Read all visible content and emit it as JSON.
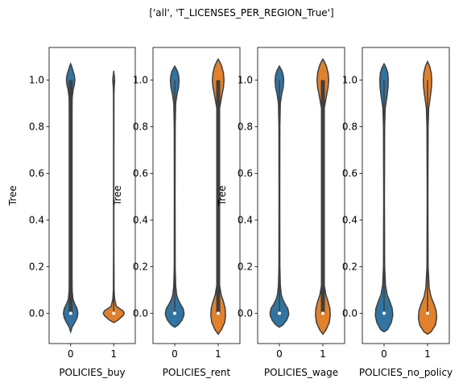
{
  "figure": {
    "suptitle": "['all', 'T_LICENSES_PER_REGION_True']"
  },
  "colors": {
    "group0": "#3274a1",
    "group1": "#e1812c",
    "inner": "#3f3f3f",
    "axis": "#000000",
    "background": "#ffffff"
  },
  "chart_data": [
    {
      "type": "violin",
      "xlabel": "POLICIES_buy",
      "ylabel": "Tree",
      "categories": [
        "0",
        "1"
      ],
      "ylim": [
        -0.13,
        1.14
      ],
      "yticks": [
        0.0,
        0.2,
        0.4,
        0.6,
        0.8,
        1.0
      ],
      "yticklabels": [
        "0.0",
        "0.2",
        "0.4",
        "0.6",
        "0.8",
        "1.0"
      ],
      "grid": false,
      "violins": [
        {
          "category": "0",
          "color_key": "group0",
          "extent": [
            -0.08,
            1.07
          ],
          "lower_mode": 0.0,
          "upper_mode": 1.0,
          "median": 0.0,
          "q1": 0.0,
          "q3": 1.0,
          "whisker_low": 0.0,
          "whisker_high": 1.0,
          "density_profile": [
            [
              -0.08,
              0.0
            ],
            [
              -0.06,
              0.12
            ],
            [
              -0.04,
              0.35
            ],
            [
              -0.02,
              0.55
            ],
            [
              0.0,
              0.62
            ],
            [
              0.02,
              0.55
            ],
            [
              0.04,
              0.35
            ],
            [
              0.06,
              0.2
            ],
            [
              0.1,
              0.12
            ],
            [
              0.2,
              0.09
            ],
            [
              0.5,
              0.07
            ],
            [
              0.8,
              0.08
            ],
            [
              0.92,
              0.12
            ],
            [
              0.96,
              0.22
            ],
            [
              0.98,
              0.32
            ],
            [
              1.0,
              0.36
            ],
            [
              1.02,
              0.32
            ],
            [
              1.04,
              0.2
            ],
            [
              1.06,
              0.08
            ],
            [
              1.07,
              0.0
            ]
          ]
        },
        {
          "category": "1",
          "color_key": "group1",
          "extent": [
            -0.04,
            1.04
          ],
          "lower_mode": 0.0,
          "upper_mode": 1.0,
          "median": 0.0,
          "q1": 0.0,
          "q3": 0.0,
          "whisker_low": 0.0,
          "whisker_high": 1.0,
          "density_profile": [
            [
              -0.04,
              0.0
            ],
            [
              -0.03,
              0.35
            ],
            [
              -0.01,
              0.8
            ],
            [
              0.0,
              0.9
            ],
            [
              0.01,
              0.8
            ],
            [
              0.02,
              0.5
            ],
            [
              0.03,
              0.22
            ],
            [
              0.06,
              0.08
            ],
            [
              0.1,
              0.03
            ],
            [
              0.3,
              0.015
            ],
            [
              0.7,
              0.015
            ],
            [
              0.94,
              0.02
            ],
            [
              0.97,
              0.04
            ],
            [
              0.99,
              0.07
            ],
            [
              1.0,
              0.08
            ],
            [
              1.01,
              0.07
            ],
            [
              1.02,
              0.04
            ],
            [
              1.03,
              0.015
            ],
            [
              1.04,
              0.0
            ]
          ]
        }
      ]
    },
    {
      "type": "violin",
      "xlabel": "POLICIES_rent",
      "ylabel": "Tree",
      "categories": [
        "0",
        "1"
      ],
      "ylim": [
        -0.13,
        1.14
      ],
      "yticks": [
        0.0,
        0.2,
        0.4,
        0.6,
        0.8,
        1.0
      ],
      "yticklabels": [
        "0.0",
        "0.2",
        "0.4",
        "0.6",
        "0.8",
        "1.0"
      ],
      "grid": false,
      "violins": [
        {
          "category": "0",
          "color_key": "group0",
          "extent": [
            -0.06,
            1.06
          ],
          "lower_mode": 0.0,
          "upper_mode": 1.0,
          "median": 0.0,
          "q1": 0.0,
          "q3": 0.0,
          "whisker_low": 0.0,
          "whisker_high": 1.0,
          "density_profile": [
            [
              -0.06,
              0.0
            ],
            [
              -0.05,
              0.3
            ],
            [
              -0.03,
              0.62
            ],
            [
              -0.01,
              0.78
            ],
            [
              0.0,
              0.8
            ],
            [
              0.02,
              0.72
            ],
            [
              0.04,
              0.48
            ],
            [
              0.06,
              0.28
            ],
            [
              0.08,
              0.16
            ],
            [
              0.12,
              0.08
            ],
            [
              0.2,
              0.04
            ],
            [
              0.5,
              0.03
            ],
            [
              0.8,
              0.04
            ],
            [
              0.9,
              0.08
            ],
            [
              0.94,
              0.2
            ],
            [
              0.97,
              0.33
            ],
            [
              1.0,
              0.37
            ],
            [
              1.02,
              0.33
            ],
            [
              1.04,
              0.22
            ],
            [
              1.06,
              0.0
            ]
          ]
        },
        {
          "category": "1",
          "color_key": "group1",
          "extent": [
            -0.09,
            1.09
          ],
          "lower_mode": 0.0,
          "upper_mode": 1.0,
          "median": 0.0,
          "q1": 0.0,
          "q3": 1.0,
          "whisker_low": 0.0,
          "whisker_high": 1.0,
          "density_profile": [
            [
              -0.09,
              0.0
            ],
            [
              -0.07,
              0.28
            ],
            [
              -0.04,
              0.55
            ],
            [
              -0.01,
              0.63
            ],
            [
              0.02,
              0.6
            ],
            [
              0.05,
              0.45
            ],
            [
              0.08,
              0.25
            ],
            [
              0.12,
              0.12
            ],
            [
              0.2,
              0.06
            ],
            [
              0.5,
              0.05
            ],
            [
              0.8,
              0.06
            ],
            [
              0.88,
              0.12
            ],
            [
              0.93,
              0.3
            ],
            [
              0.97,
              0.45
            ],
            [
              1.0,
              0.5
            ],
            [
              1.03,
              0.45
            ],
            [
              1.06,
              0.3
            ],
            [
              1.08,
              0.12
            ],
            [
              1.09,
              0.0
            ]
          ]
        }
      ]
    },
    {
      "type": "violin",
      "xlabel": "POLICIES_wage",
      "ylabel": "Tree",
      "categories": [
        "0",
        "1"
      ],
      "ylim": [
        -0.13,
        1.14
      ],
      "yticks": [
        0.0,
        0.2,
        0.4,
        0.6,
        0.8,
        1.0
      ],
      "yticklabels": [
        "0.0",
        "0.2",
        "0.4",
        "0.6",
        "0.8",
        "1.0"
      ],
      "grid": false,
      "violins": [
        {
          "category": "0",
          "color_key": "group0",
          "extent": [
            -0.06,
            1.06
          ],
          "lower_mode": 0.0,
          "upper_mode": 1.0,
          "median": 0.0,
          "q1": 0.0,
          "q3": 0.0,
          "whisker_low": 0.0,
          "whisker_high": 1.0,
          "density_profile": [
            [
              -0.06,
              0.0
            ],
            [
              -0.05,
              0.3
            ],
            [
              -0.03,
              0.62
            ],
            [
              -0.01,
              0.78
            ],
            [
              0.0,
              0.8
            ],
            [
              0.02,
              0.72
            ],
            [
              0.04,
              0.48
            ],
            [
              0.06,
              0.28
            ],
            [
              0.08,
              0.16
            ],
            [
              0.12,
              0.08
            ],
            [
              0.2,
              0.04
            ],
            [
              0.5,
              0.03
            ],
            [
              0.8,
              0.04
            ],
            [
              0.9,
              0.08
            ],
            [
              0.94,
              0.2
            ],
            [
              0.97,
              0.33
            ],
            [
              1.0,
              0.37
            ],
            [
              1.02,
              0.33
            ],
            [
              1.04,
              0.22
            ],
            [
              1.06,
              0.0
            ]
          ]
        },
        {
          "category": "1",
          "color_key": "group1",
          "extent": [
            -0.09,
            1.09
          ],
          "lower_mode": 0.0,
          "upper_mode": 1.0,
          "median": 0.0,
          "q1": 0.0,
          "q3": 1.0,
          "whisker_low": 0.0,
          "whisker_high": 1.0,
          "density_profile": [
            [
              -0.09,
              0.0
            ],
            [
              -0.07,
              0.28
            ],
            [
              -0.04,
              0.55
            ],
            [
              -0.01,
              0.63
            ],
            [
              0.02,
              0.6
            ],
            [
              0.05,
              0.45
            ],
            [
              0.08,
              0.25
            ],
            [
              0.12,
              0.12
            ],
            [
              0.2,
              0.06
            ],
            [
              0.5,
              0.05
            ],
            [
              0.8,
              0.06
            ],
            [
              0.88,
              0.12
            ],
            [
              0.93,
              0.3
            ],
            [
              0.97,
              0.45
            ],
            [
              1.0,
              0.5
            ],
            [
              1.03,
              0.45
            ],
            [
              1.06,
              0.3
            ],
            [
              1.08,
              0.12
            ],
            [
              1.09,
              0.0
            ]
          ]
        }
      ]
    },
    {
      "type": "violin",
      "xlabel": "POLICIES_no_policy",
      "ylabel": "",
      "categories": [
        "0",
        "1"
      ],
      "ylim": [
        -0.13,
        1.14
      ],
      "yticks": [
        0.0,
        0.2,
        0.4,
        0.6,
        0.8,
        1.0
      ],
      "yticklabels": [
        "0.0",
        "0.2",
        "0.4",
        "0.6",
        "0.8",
        "1.0"
      ],
      "grid": false,
      "violins": [
        {
          "category": "0",
          "color_key": "group0",
          "extent": [
            -0.08,
            1.07
          ],
          "lower_mode": 0.0,
          "upper_mode": 1.0,
          "median": 0.0,
          "q1": 0.0,
          "q3": 0.0,
          "whisker_low": 0.0,
          "whisker_high": 1.0,
          "density_profile": [
            [
              -0.08,
              0.0
            ],
            [
              -0.07,
              0.3
            ],
            [
              -0.04,
              0.62
            ],
            [
              -0.01,
              0.75
            ],
            [
              0.02,
              0.7
            ],
            [
              0.05,
              0.5
            ],
            [
              0.08,
              0.26
            ],
            [
              0.12,
              0.12
            ],
            [
              0.2,
              0.05
            ],
            [
              0.5,
              0.03
            ],
            [
              0.8,
              0.05
            ],
            [
              0.88,
              0.1
            ],
            [
              0.93,
              0.25
            ],
            [
              0.97,
              0.34
            ],
            [
              1.0,
              0.36
            ],
            [
              1.03,
              0.32
            ],
            [
              1.05,
              0.2
            ],
            [
              1.07,
              0.0
            ]
          ]
        },
        {
          "category": "1",
          "color_key": "group1",
          "extent": [
            -0.09,
            1.08
          ],
          "lower_mode": 0.0,
          "upper_mode": 1.0,
          "median": 0.0,
          "q1": 0.0,
          "q3": 0.0,
          "whisker_low": 0.0,
          "whisker_high": 1.0,
          "density_profile": [
            [
              -0.09,
              0.0
            ],
            [
              -0.08,
              0.3
            ],
            [
              -0.05,
              0.68
            ],
            [
              -0.02,
              0.78
            ],
            [
              0.01,
              0.74
            ],
            [
              0.04,
              0.55
            ],
            [
              0.07,
              0.3
            ],
            [
              0.11,
              0.14
            ],
            [
              0.2,
              0.05
            ],
            [
              0.5,
              0.03
            ],
            [
              0.8,
              0.05
            ],
            [
              0.88,
              0.1
            ],
            [
              0.93,
              0.24
            ],
            [
              0.97,
              0.34
            ],
            [
              1.0,
              0.36
            ],
            [
              1.03,
              0.32
            ],
            [
              1.06,
              0.18
            ],
            [
              1.08,
              0.0
            ]
          ]
        }
      ]
    }
  ]
}
